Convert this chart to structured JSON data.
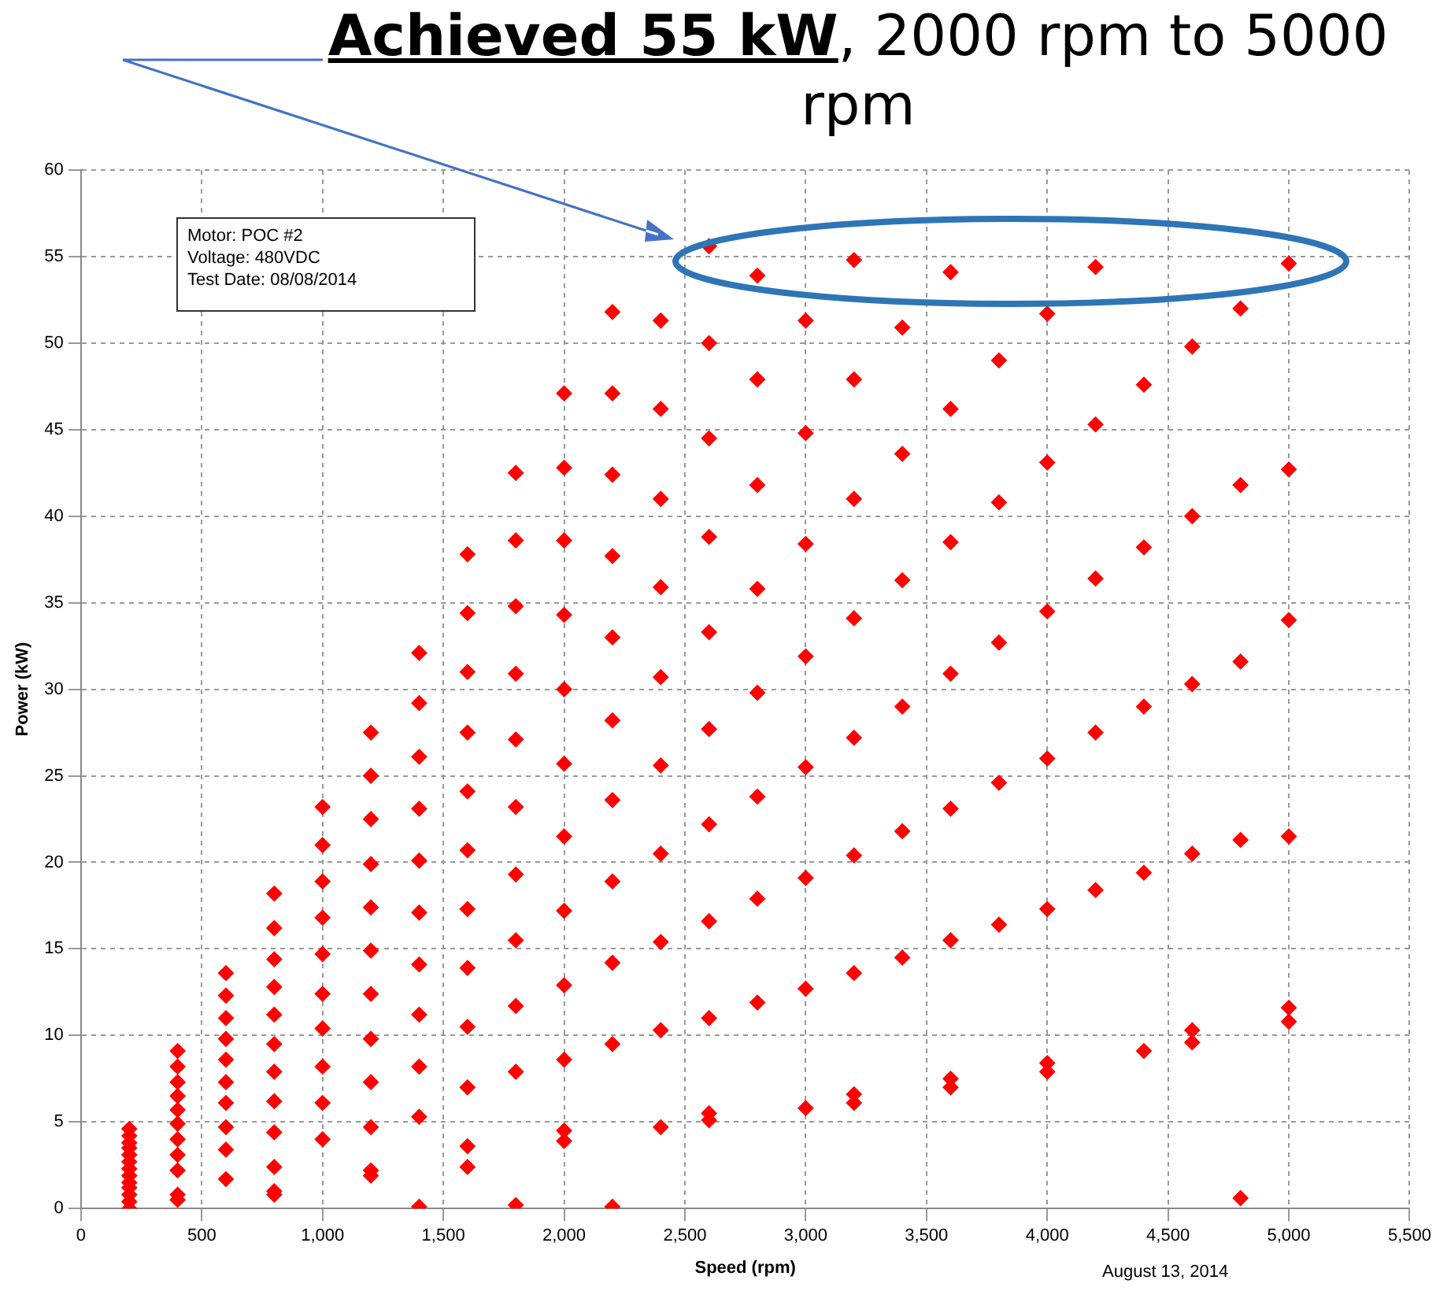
{
  "chart_data": {
    "type": "scatter",
    "title": "Achieved 55 kW, 2000 rpm to 5000 rpm",
    "xlabel": "Speed (rpm)",
    "ylabel": "Power (kW)",
    "annotations": [
      "Motor: POC #2",
      "Voltage: 480VDC",
      "Test Date: 08/08/2014",
      "August 13, 2014"
    ],
    "series": [
      {
        "color": "#ff0000",
        "x": [
          200,
          200,
          200,
          200,
          200,
          200,
          200,
          200,
          200,
          200,
          200,
          200,
          200,
          400,
          400,
          400,
          400,
          400,
          400,
          400,
          400,
          400,
          400,
          400,
          600,
          600,
          600,
          600,
          600,
          600,
          600,
          600,
          600,
          600,
          800,
          800,
          800,
          800,
          800,
          800,
          800,
          800,
          800,
          800,
          800,
          800,
          1000,
          1000,
          1000,
          1000,
          1000,
          1000,
          1000,
          1000,
          1000,
          1000,
          1200,
          1200,
          1200,
          1200,
          1200,
          1200,
          1200,
          1200,
          1200,
          1200,
          1200,
          1200,
          1400,
          1400,
          1400,
          1400,
          1400,
          1400,
          1400,
          1400,
          1400,
          1400,
          1400,
          1600,
          1600,
          1600,
          1600,
          1600,
          1600,
          1600,
          1600,
          1600,
          1600,
          1600,
          1600,
          1800,
          1800,
          1800,
          1800,
          1800,
          1800,
          1800,
          1800,
          1800,
          1800,
          1800,
          2000,
          2000,
          2000,
          2000,
          2000,
          2000,
          2000,
          2000,
          2000,
          2000,
          2000,
          2000,
          2200,
          2200,
          2200,
          2200,
          2200,
          2200,
          2200,
          2200,
          2200,
          2200,
          2200,
          2400,
          2400,
          2400,
          2400,
          2400,
          2400,
          2400,
          2400,
          2400,
          2400,
          2600,
          2600,
          2600,
          2600,
          2600,
          2600,
          2600,
          2600,
          2600,
          2600,
          2600,
          2800,
          2800,
          2800,
          2800,
          2800,
          2800,
          2800,
          2800,
          3000,
          3000,
          3000,
          3000,
          3000,
          3000,
          3000,
          3000,
          3200,
          3200,
          3200,
          3200,
          3200,
          3200,
          3200,
          3200,
          3200,
          3400,
          3400,
          3400,
          3400,
          3400,
          3400,
          3600,
          3600,
          3600,
          3600,
          3600,
          3600,
          3600,
          3600,
          3800,
          3800,
          3800,
          3800,
          3800,
          4000,
          4000,
          4000,
          4000,
          4000,
          4000,
          4000,
          4200,
          4200,
          4200,
          4200,
          4200,
          4400,
          4400,
          4400,
          4400,
          4400,
          4600,
          4600,
          4600,
          4600,
          4600,
          4600,
          4800,
          4800,
          4800,
          4800,
          4800,
          5000,
          5000,
          5000,
          5000,
          5000,
          5000
        ],
        "values": [
          0,
          0.4,
          0.8,
          1.2,
          1.5,
          1.9,
          2.3,
          2.7,
          3.1,
          3.5,
          3.8,
          4.2,
          4.6,
          9.1,
          8.2,
          7.3,
          6.5,
          5.7,
          4.9,
          4.0,
          3.1,
          2.2,
          0.8,
          0.5,
          13.6,
          12.3,
          11.0,
          9.8,
          8.6,
          7.3,
          6.1,
          4.7,
          3.4,
          1.7,
          18.2,
          16.2,
          14.4,
          12.8,
          11.2,
          9.5,
          7.9,
          6.2,
          4.4,
          2.4,
          1.0,
          0.8,
          23.2,
          21.0,
          18.9,
          16.8,
          14.7,
          12.4,
          10.4,
          8.2,
          6.1,
          4.0,
          27.5,
          25.0,
          22.5,
          19.9,
          17.4,
          14.9,
          12.4,
          9.8,
          7.3,
          4.7,
          2.2,
          1.9,
          32.1,
          29.2,
          26.1,
          23.1,
          20.1,
          17.1,
          14.1,
          11.2,
          8.2,
          5.3,
          0.1,
          37.8,
          34.4,
          31.0,
          27.5,
          24.1,
          20.7,
          17.3,
          13.9,
          10.5,
          7.0,
          3.6,
          2.4,
          42.5,
          38.6,
          34.8,
          30.9,
          27.1,
          23.2,
          19.3,
          15.5,
          11.7,
          7.9,
          0.2,
          47.1,
          42.8,
          38.6,
          34.3,
          30.0,
          25.7,
          21.5,
          17.2,
          12.9,
          8.6,
          4.5,
          3.9,
          51.8,
          47.1,
          42.4,
          37.7,
          33.0,
          28.2,
          23.6,
          18.9,
          14.2,
          9.5,
          0.1,
          51.3,
          46.2,
          41.0,
          35.9,
          30.7,
          25.6,
          20.5,
          15.4,
          10.3,
          4.7,
          55.6,
          50.0,
          44.5,
          38.8,
          33.3,
          27.7,
          22.2,
          16.6,
          11.0,
          5.5,
          5.1,
          53.9,
          47.9,
          41.8,
          35.8,
          29.8,
          23.8,
          17.9,
          11.9,
          51.3,
          44.8,
          38.4,
          31.9,
          25.5,
          19.1,
          12.7,
          5.8,
          54.8,
          47.9,
          41.0,
          34.1,
          27.2,
          20.4,
          13.6,
          6.6,
          6.1,
          50.9,
          43.6,
          36.3,
          29.0,
          21.8,
          14.5,
          54.1,
          46.2,
          38.5,
          30.9,
          23.1,
          15.5,
          7.5,
          7.0,
          49.0,
          40.8,
          32.7,
          24.6,
          16.4,
          51.7,
          43.1,
          34.5,
          26.0,
          17.3,
          8.4,
          7.9,
          54.4,
          45.3,
          36.4,
          27.5,
          18.4,
          47.6,
          38.2,
          29.0,
          19.4,
          9.1,
          49.8,
          40.0,
          30.3,
          20.5,
          10.3,
          9.6,
          52.0,
          41.8,
          31.6,
          21.3,
          0.6,
          54.6,
          42.7,
          34.0,
          21.5,
          11.6,
          10.8
        ]
      }
    ],
    "marker": "diamond",
    "grid": true,
    "legend": false,
    "xlim": [
      0,
      5500
    ],
    "xticks": [
      0,
      500,
      {
        "value": 1000,
        "label": "1,000"
      },
      {
        "value": 1500,
        "label": "1,500"
      },
      {
        "value": 2000,
        "label": "2,000"
      },
      {
        "value": 2500,
        "label": "2,500"
      },
      {
        "value": 3000,
        "label": "3,000"
      },
      {
        "value": 3500,
        "label": "3,500"
      },
      {
        "value": 4000,
        "label": "4,000"
      },
      {
        "value": 4500,
        "label": "4,500"
      },
      {
        "value": 5000,
        "label": "5,000"
      },
      {
        "value": 5500,
        "label": "5,500"
      }
    ],
    "ylim": [
      0,
      60
    ],
    "yticks": [
      0,
      5,
      10,
      15,
      20,
      25,
      30,
      35,
      40,
      45,
      50,
      55,
      60
    ]
  }
}
